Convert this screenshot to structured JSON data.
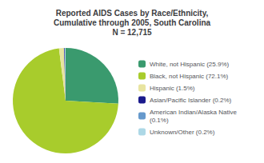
{
  "chart_data": {
    "type": "pie",
    "title": "Reported AIDS Cases by Race/Ethnicity,\nCumulative through 2005, South Carolina\nN = 12,715",
    "categories": [
      "White, not Hispanic (25.9%)",
      "Black, not Hispanic (72.1%)",
      "Hispanic (1.5%)",
      "Asian/Pacific Islander (0.2%)",
      "American Indian/Alaska Native\n(0.1%)",
      "Unknown/Other (0.2%)"
    ],
    "values": [
      25.9,
      72.1,
      1.5,
      0.2,
      0.1,
      0.2
    ],
    "colors": [
      "#3a9a6e",
      "#a8cc2c",
      "#e8e4a0",
      "#1a1a8c",
      "#6699cc",
      "#add8e6"
    ],
    "legend": "right"
  }
}
